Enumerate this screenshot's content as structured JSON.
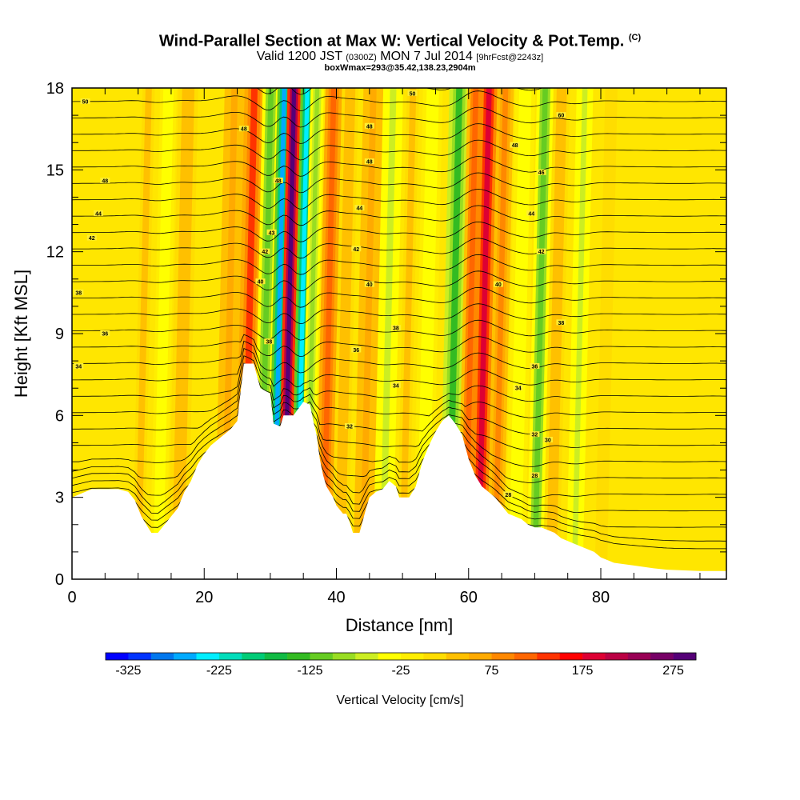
{
  "header": {
    "title": "Wind-Parallel Section at Max W: Vertical Velocity & Pot.Temp.",
    "title_mark": "(C)",
    "valid_prefix": "Valid 1200 JST",
    "valid_utc": "(0300Z)",
    "valid_date": "MON 7 Jul 2014",
    "forecast": "[9hrFcst@2243z]",
    "boxwmax": "boxWmax=293@35.42,138.23,2904m"
  },
  "chart_data": {
    "type": "heatmap",
    "xlabel": "Distance [nm]",
    "ylabel": "Height [Kft MSL]",
    "xlim": [
      0,
      99
    ],
    "ylim": [
      0,
      18
    ],
    "x_ticks": [
      0,
      20,
      40,
      60,
      80
    ],
    "y_ticks": [
      0,
      3,
      6,
      9,
      12,
      15,
      18
    ],
    "grid": false,
    "terrain_kft": [
      [
        0,
        3.0
      ],
      [
        3,
        3.3
      ],
      [
        7,
        3.3
      ],
      [
        8.5,
        3.2
      ],
      [
        9.5,
        2.9
      ],
      [
        10.5,
        2.3
      ],
      [
        11.5,
        1.9
      ],
      [
        12,
        1.7
      ],
      [
        13,
        1.7
      ],
      [
        14,
        2.0
      ],
      [
        15,
        2.3
      ],
      [
        16,
        2.6
      ],
      [
        17,
        3.2
      ],
      [
        18,
        3.6
      ],
      [
        19,
        4.2
      ],
      [
        20,
        4.6
      ],
      [
        21,
        4.9
      ],
      [
        22,
        5.1
      ],
      [
        23,
        5.3
      ],
      [
        24,
        5.5
      ],
      [
        25,
        5.8
      ],
      [
        26,
        7.9
      ],
      [
        27.5,
        7.9
      ],
      [
        28.5,
        7.0
      ],
      [
        30,
        6.8
      ],
      [
        30.5,
        5.7
      ],
      [
        31.5,
        5.6
      ],
      [
        32,
        6.0
      ],
      [
        33.5,
        6.0
      ],
      [
        35,
        6.5
      ],
      [
        36,
        6.4
      ],
      [
        36.5,
        5.8
      ],
      [
        37,
        5.3
      ],
      [
        37.5,
        4.4
      ],
      [
        38,
        3.8
      ],
      [
        38.5,
        3.4
      ],
      [
        39.5,
        3.0
      ],
      [
        40,
        2.7
      ],
      [
        41,
        2.4
      ],
      [
        41.5,
        2.4
      ],
      [
        42,
        2.1
      ],
      [
        42.5,
        1.7
      ],
      [
        43.5,
        1.7
      ],
      [
        44.5,
        2.6
      ],
      [
        45,
        3.0
      ],
      [
        46,
        3.2
      ],
      [
        47,
        3.3
      ],
      [
        48,
        3.6
      ],
      [
        49,
        3.4
      ],
      [
        49.5,
        3.0
      ],
      [
        51,
        3.0
      ],
      [
        52,
        3.4
      ],
      [
        53,
        4.3
      ],
      [
        54,
        4.9
      ],
      [
        55,
        5.4
      ],
      [
        56,
        5.8
      ],
      [
        57,
        6.0
      ],
      [
        58,
        5.7
      ],
      [
        59,
        5.3
      ],
      [
        60,
        4.4
      ],
      [
        61,
        3.8
      ],
      [
        62,
        3.4
      ],
      [
        63,
        3.2
      ],
      [
        64,
        3.0
      ],
      [
        65,
        2.7
      ],
      [
        66,
        2.4
      ],
      [
        67,
        2.3
      ],
      [
        68,
        2.2
      ],
      [
        69,
        2.0
      ],
      [
        70,
        1.9
      ],
      [
        71,
        1.9
      ],
      [
        72,
        1.8
      ],
      [
        73,
        1.7
      ],
      [
        74,
        1.5
      ],
      [
        75,
        1.4
      ],
      [
        76,
        1.3
      ],
      [
        77,
        1.2
      ],
      [
        78,
        1.1
      ],
      [
        79,
        1.0
      ],
      [
        80,
        0.8
      ],
      [
        81,
        0.7
      ],
      [
        82,
        0.6
      ],
      [
        85,
        0.5
      ],
      [
        88,
        0.4
      ],
      [
        90,
        0.35
      ],
      [
        95,
        0.3
      ],
      [
        99,
        0.3
      ]
    ],
    "vertical_velocity_columns": [
      {
        "x": 2,
        "w": 0,
        "width": 4
      },
      {
        "x": 5,
        "w": 5,
        "width": 5
      },
      {
        "x": 10,
        "w": 30,
        "width": 3
      },
      {
        "x": 13,
        "w": -45,
        "width": 2.5
      },
      {
        "x": 16,
        "w": 35,
        "width": 3
      },
      {
        "x": 19,
        "w": 0,
        "width": 3
      },
      {
        "x": 23,
        "w": 60,
        "width": 3
      },
      {
        "x": 26,
        "w": 130,
        "width": 3
      },
      {
        "x": 28.5,
        "w": -110,
        "width": 2.5
      },
      {
        "x": 30.5,
        "w": -260,
        "width": 2
      },
      {
        "x": 32,
        "w": 280,
        "width": 2
      },
      {
        "x": 34,
        "w": -240,
        "width": 2
      },
      {
        "x": 35.5,
        "w": -90,
        "width": 2
      },
      {
        "x": 38,
        "w": 120,
        "width": 2.5
      },
      {
        "x": 40.5,
        "w": 40,
        "width": 2.5
      },
      {
        "x": 44,
        "w": 60,
        "width": 3
      },
      {
        "x": 47,
        "w": -60,
        "width": 3
      },
      {
        "x": 50,
        "w": 30,
        "width": 3
      },
      {
        "x": 53,
        "w": -40,
        "width": 3
      },
      {
        "x": 57,
        "w": -130,
        "width": 3
      },
      {
        "x": 59.5,
        "w": 110,
        "width": 2.5
      },
      {
        "x": 61.5,
        "w": 190,
        "width": 2.5
      },
      {
        "x": 64,
        "w": 80,
        "width": 2.5
      },
      {
        "x": 67,
        "w": -50,
        "width": 3
      },
      {
        "x": 70,
        "w": -110,
        "width": 2.5
      },
      {
        "x": 72.5,
        "w": 40,
        "width": 2.5
      },
      {
        "x": 76,
        "w": -60,
        "width": 2.5
      },
      {
        "x": 80,
        "w": 20,
        "width": 3
      },
      {
        "x": 85,
        "w": 10,
        "width": 4
      },
      {
        "x": 92,
        "w": 0,
        "width": 5
      },
      {
        "x": 97,
        "w": 10,
        "width": 3
      }
    ],
    "contour_labels": [
      {
        "text": "50",
        "x": 2,
        "y": 17.5
      },
      {
        "text": "48",
        "x": 26,
        "y": 16.5
      },
      {
        "text": "48",
        "x": 5,
        "y": 14.6
      },
      {
        "text": "44",
        "x": 4,
        "y": 13.4
      },
      {
        "text": "42",
        "x": 3,
        "y": 12.5
      },
      {
        "text": "38",
        "x": 1,
        "y": 10.5
      },
      {
        "text": "36",
        "x": 5,
        "y": 9.0
      },
      {
        "text": "34",
        "x": 1,
        "y": 7.8
      },
      {
        "text": "48",
        "x": 31.2,
        "y": 14.6
      },
      {
        "text": "43",
        "x": 30.2,
        "y": 12.7
      },
      {
        "text": "42",
        "x": 29.2,
        "y": 12.0
      },
      {
        "text": "40",
        "x": 28.5,
        "y": 10.9
      },
      {
        "text": "38",
        "x": 29.8,
        "y": 8.7
      },
      {
        "text": "50",
        "x": 51.5,
        "y": 17.8
      },
      {
        "text": "48",
        "x": 45,
        "y": 16.6
      },
      {
        "text": "48",
        "x": 45,
        "y": 15.3
      },
      {
        "text": "44",
        "x": 43.5,
        "y": 13.6
      },
      {
        "text": "42",
        "x": 43,
        "y": 12.1
      },
      {
        "text": "40",
        "x": 45,
        "y": 10.8
      },
      {
        "text": "38",
        "x": 49,
        "y": 9.2
      },
      {
        "text": "36",
        "x": 43,
        "y": 8.4
      },
      {
        "text": "34",
        "x": 49,
        "y": 7.1
      },
      {
        "text": "32",
        "x": 42,
        "y": 5.6
      },
      {
        "text": "60",
        "x": 74,
        "y": 17.0
      },
      {
        "text": "48",
        "x": 67,
        "y": 15.9
      },
      {
        "text": "46",
        "x": 71,
        "y": 14.9
      },
      {
        "text": "44",
        "x": 69.5,
        "y": 13.4
      },
      {
        "text": "42",
        "x": 71,
        "y": 12.0
      },
      {
        "text": "40",
        "x": 64.5,
        "y": 10.8
      },
      {
        "text": "38",
        "x": 74,
        "y": 9.4
      },
      {
        "text": "36",
        "x": 70,
        "y": 7.8
      },
      {
        "text": "34",
        "x": 67.5,
        "y": 7.0
      },
      {
        "text": "32",
        "x": 70,
        "y": 5.3
      },
      {
        "text": "30",
        "x": 72,
        "y": 5.1
      },
      {
        "text": "28",
        "x": 70,
        "y": 3.8
      },
      {
        "text": "28",
        "x": 66,
        "y": 3.1
      }
    ],
    "colorbar": {
      "title": "Vertical Velocity [cm/s]",
      "min": -350,
      "max": 300,
      "step": 25,
      "tick_values": [
        -325,
        -225,
        -125,
        -25,
        75,
        175,
        275
      ],
      "tick_labels": [
        "-325",
        "-225",
        "-125",
        "-25",
        "75",
        "175",
        "275"
      ],
      "colors": [
        "#0000ff",
        "#0033ff",
        "#0077ee",
        "#00aaff",
        "#00eeff",
        "#00ddbb",
        "#00cc77",
        "#11bb44",
        "#33bb22",
        "#66cc22",
        "#99dd22",
        "#ccee22",
        "#ffff00",
        "#ffee00",
        "#ffdd00",
        "#ffc000",
        "#ffaa00",
        "#ff8800",
        "#ff6600",
        "#ff3300",
        "#ff0000",
        "#dd0033",
        "#bb0044",
        "#990055",
        "#770066",
        "#550077"
      ]
    }
  }
}
